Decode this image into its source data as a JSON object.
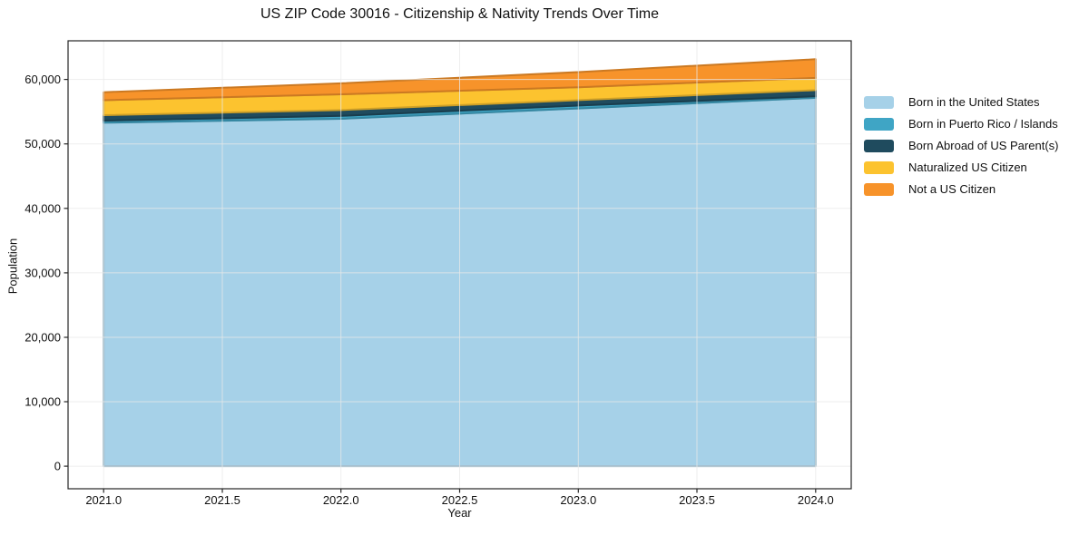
{
  "title": "US ZIP Code 30016 - Citizenship & Nativity Trends Over Time",
  "axes": {
    "x_label": "Year",
    "y_label": "Population",
    "x_ticks": [
      "2021.0",
      "2021.5",
      "2022.0",
      "2022.5",
      "2023.0",
      "2023.5",
      "2024.0"
    ],
    "y_ticks": [
      "0",
      "10,000",
      "20,000",
      "30,000",
      "40,000",
      "50,000",
      "60,000"
    ]
  },
  "chart_data": {
    "type": "area",
    "stacked": true,
    "title": "US ZIP Code 30016 - Citizenship & Nativity Trends Over Time",
    "xlabel": "Year",
    "ylabel": "Population",
    "x": [
      2021,
      2022,
      2023,
      2024
    ],
    "x_tick_values": [
      2021.0,
      2021.5,
      2022.0,
      2022.5,
      2023.0,
      2023.5,
      2024.0
    ],
    "y_tick_values": [
      0,
      10000,
      20000,
      30000,
      40000,
      50000,
      60000
    ],
    "xlim": [
      2020.85,
      2024.15
    ],
    "ylim": [
      -3500,
      66000
    ],
    "grid": true,
    "grid_color": "#e9e9e9",
    "legend_position": "outside-right",
    "series": [
      {
        "name": "Born in the United States",
        "color": "#a6d1e8",
        "values": [
          53290,
          53900,
          55500,
          57150
        ]
      },
      {
        "name": "Born in Puerto Rico / Islands",
        "color": "#3fa5c5",
        "values": [
          330,
          450,
          450,
          250
        ]
      },
      {
        "name": "Born Abroad of US Parent(s)",
        "color": "#1f4b5e",
        "values": [
          850,
          900,
          850,
          950
        ]
      },
      {
        "name": "Naturalized US Citizen",
        "color": "#fcc32f",
        "values": [
          2310,
          2450,
          2000,
          1900
        ]
      },
      {
        "name": "Not a US Citizen",
        "color": "#f7932a",
        "values": [
          1250,
          1700,
          2350,
          2900
        ]
      }
    ],
    "totals": [
      58030,
      59400,
      61150,
      63150
    ]
  }
}
